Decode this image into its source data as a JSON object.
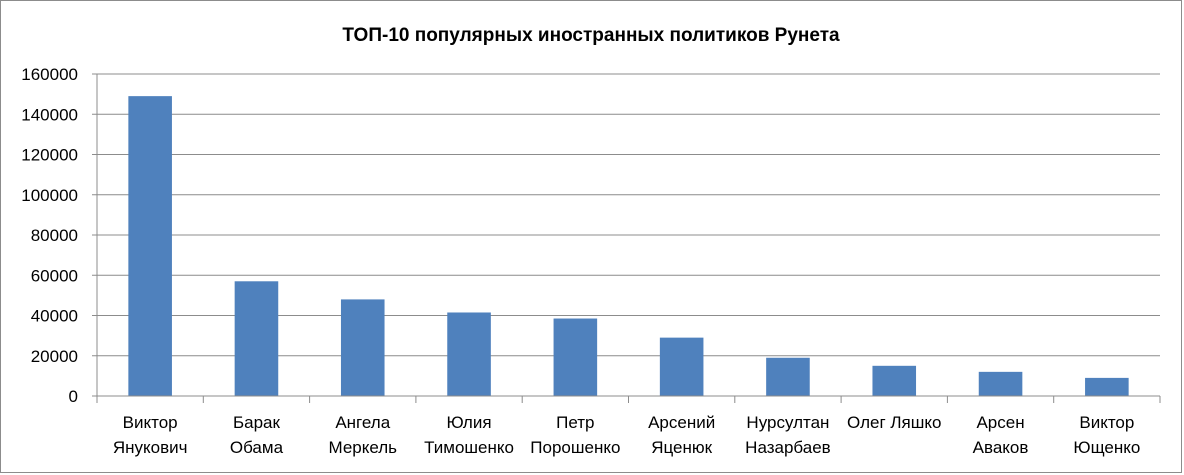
{
  "chart_data": {
    "type": "bar",
    "title": "ТОП-10 популярных иностранных политиков Рунета",
    "xlabel": "",
    "ylabel": "",
    "ylim": [
      0,
      160000
    ],
    "yticks": [
      0,
      20000,
      40000,
      60000,
      80000,
      100000,
      120000,
      140000,
      160000
    ],
    "grid": true,
    "legend": "none",
    "bar_color": "#4f81bd",
    "categories": [
      [
        "Виктор",
        "Янукович"
      ],
      [
        "Барак",
        "Обама"
      ],
      [
        "Ангела",
        "Меркель"
      ],
      [
        "Юлия",
        "Тимошенко"
      ],
      [
        "Петр",
        "Порошенко"
      ],
      [
        "Арсений",
        "Яценюк"
      ],
      [
        "Нурсултан",
        "Назарбаев"
      ],
      [
        "Олег Ляшко"
      ],
      [
        "Арсен",
        "Аваков"
      ],
      [
        "Виктор",
        "Ющенко"
      ]
    ],
    "values": [
      149000,
      57000,
      48000,
      41500,
      38500,
      29000,
      19000,
      15000,
      12000,
      9000
    ]
  }
}
